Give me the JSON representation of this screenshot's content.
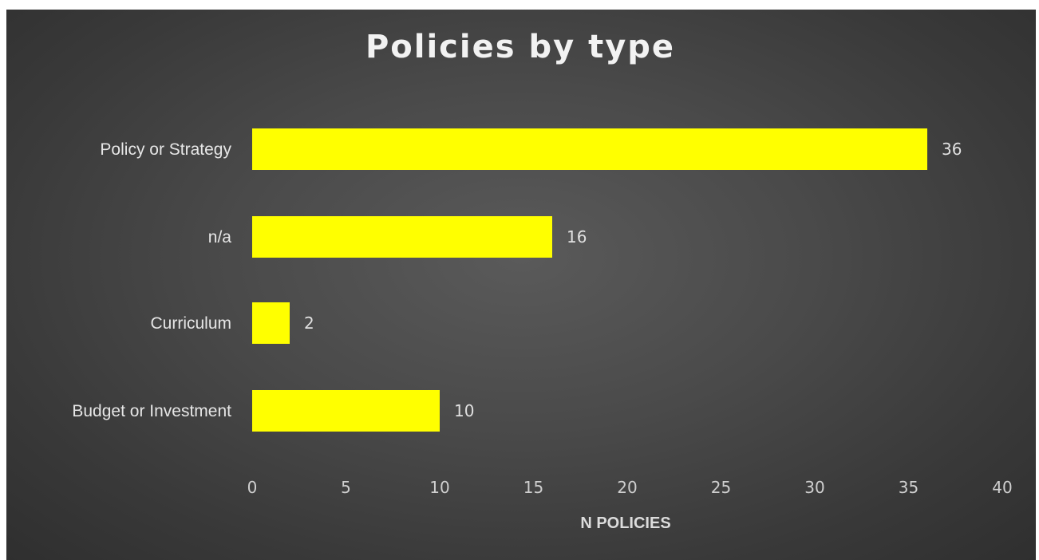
{
  "chart_data": {
    "type": "bar",
    "orientation": "horizontal",
    "title": "Policies by type",
    "xlabel": "N POLICIES",
    "ylabel": "",
    "categories": [
      "Policy or Strategy",
      "n/a",
      "Curriculum",
      "Budget or Investment"
    ],
    "values": [
      36,
      16,
      2,
      10
    ],
    "xlim": [
      0,
      40
    ],
    "xticks": [
      0,
      5,
      10,
      15,
      20,
      25,
      30,
      35,
      40
    ],
    "grid": false,
    "legend": "none",
    "data_labels": true,
    "colors": {
      "bar": "#ffff00",
      "background": "#404040",
      "text": "#e6e6e6"
    }
  }
}
